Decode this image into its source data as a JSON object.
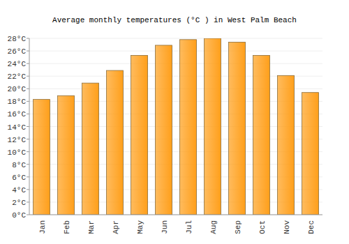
{
  "chart_data": {
    "type": "bar",
    "title": "Average monthly temperatures (°C ) in West Palm Beach",
    "categories": [
      "Jan",
      "Feb",
      "Mar",
      "Apr",
      "May",
      "Jun",
      "Jul",
      "Aug",
      "Sep",
      "Oct",
      "Nov",
      "Dec"
    ],
    "values": [
      18.3,
      18.9,
      20.9,
      22.9,
      25.3,
      26.9,
      27.8,
      28.0,
      27.4,
      25.3,
      22.1,
      19.4
    ],
    "color": "#ff9f1a",
    "ylim": [
      0,
      28
    ],
    "yticks": [
      {
        "value": 0,
        "label": "0°C"
      },
      {
        "value": 2,
        "label": "2°C"
      },
      {
        "value": 4,
        "label": "4°C"
      },
      {
        "value": 6,
        "label": "6°C"
      },
      {
        "value": 8,
        "label": "8°C"
      },
      {
        "value": 10,
        "label": "10°C"
      },
      {
        "value": 12,
        "label": "12°C"
      },
      {
        "value": 14,
        "label": "14°C"
      },
      {
        "value": 16,
        "label": "16°C"
      },
      {
        "value": 18,
        "label": "18°C"
      },
      {
        "value": 20,
        "label": "20°C"
      },
      {
        "value": 22,
        "label": "22°C"
      },
      {
        "value": 24,
        "label": "24°C"
      },
      {
        "value": 26,
        "label": "26°C"
      },
      {
        "value": 28,
        "label": "28°C"
      }
    ],
    "grid": true
  }
}
